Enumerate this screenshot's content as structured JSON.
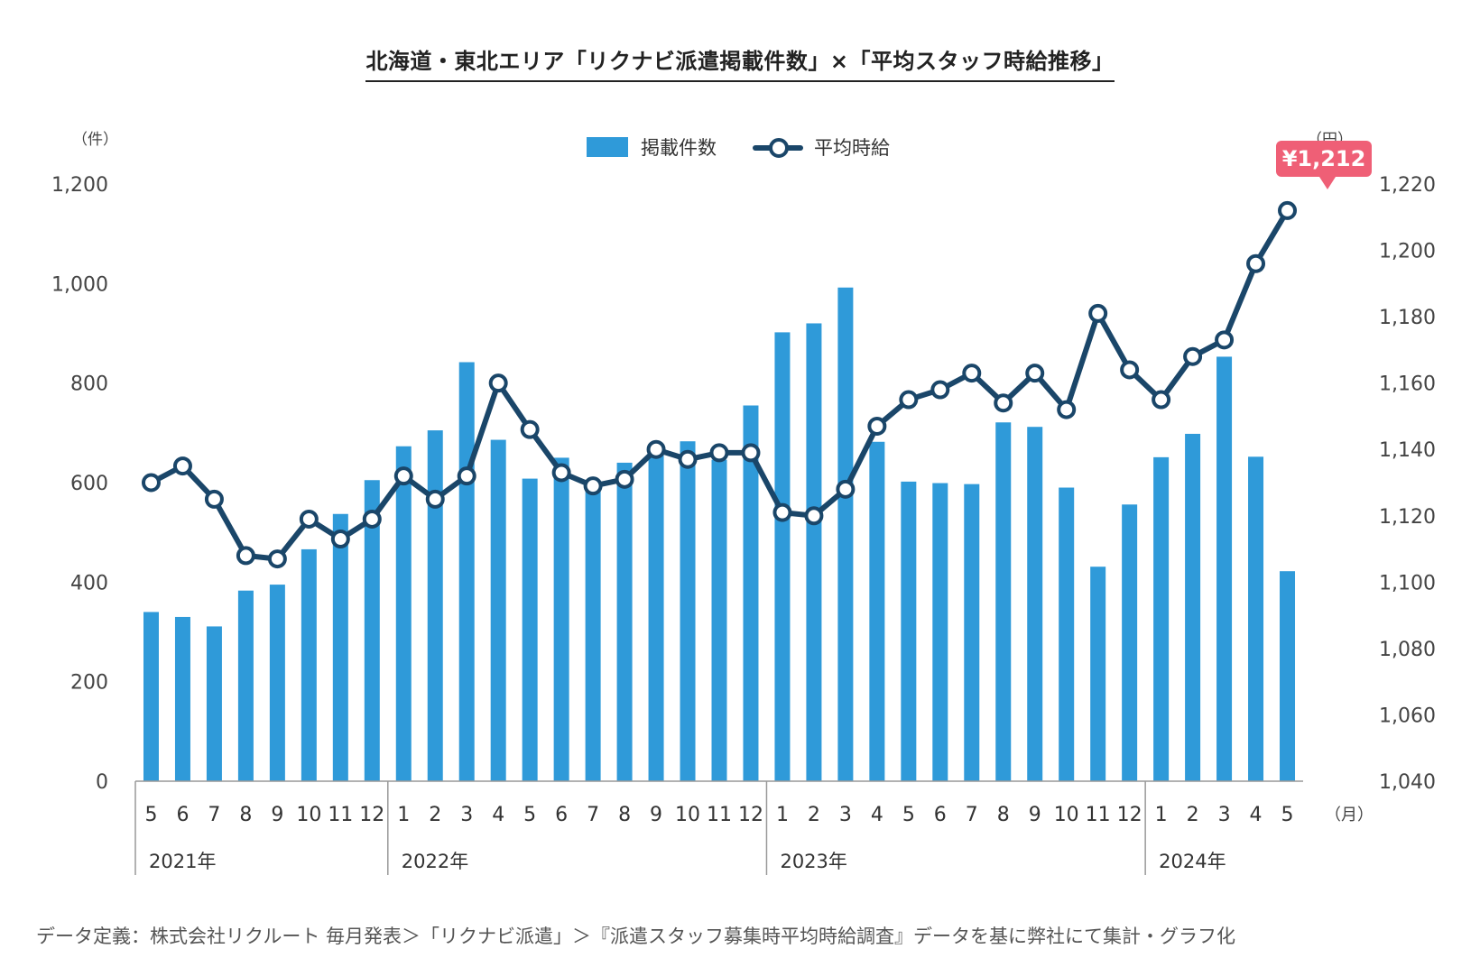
{
  "title": "北海道・東北エリア「リクナビ派遣掲載件数」×「平均スタッフ時給推移」",
  "footnote": "データ定義：株式会社リクルート 毎月発表＞「リクナビ派遣」＞『派遣スタッフ募集時平均時給調査』データを基に弊社にて集計・グラフ化",
  "callout": "¥1,212",
  "colors": {
    "bar": "#2f9ad9",
    "line": "#1a4669",
    "callout": "#ef5f76",
    "axis": "#999999"
  },
  "chart_data": {
    "type": "bar",
    "categories": [
      "5",
      "6",
      "7",
      "8",
      "9",
      "10",
      "11",
      "12",
      "1",
      "2",
      "3",
      "4",
      "5",
      "6",
      "7",
      "8",
      "9",
      "10",
      "11",
      "12",
      "1",
      "2",
      "3",
      "4",
      "5",
      "6",
      "7",
      "8",
      "9",
      "10",
      "11",
      "12",
      "1",
      "2",
      "3",
      "4",
      "5"
    ],
    "x_unit": "（月）",
    "year_groups": [
      {
        "label": "2021年",
        "start": 0,
        "count": 8
      },
      {
        "label": "2022年",
        "start": 8,
        "count": 12
      },
      {
        "label": "2023年",
        "start": 20,
        "count": 12
      },
      {
        "label": "2024年",
        "start": 32,
        "count": 5
      }
    ],
    "y_left": {
      "unit": "（件）",
      "min": 0,
      "max": 1200,
      "ticks": [
        "0",
        "200",
        "400",
        "600",
        "800",
        "1,000",
        "1,200"
      ]
    },
    "y_right": {
      "unit": "（円）",
      "min": 1040,
      "max": 1220,
      "ticks": [
        "1,040",
        "1,060",
        "1,080",
        "1,100",
        "1,120",
        "1,140",
        "1,160",
        "1,180",
        "1,200",
        "1,220"
      ]
    },
    "series": [
      {
        "name": "掲載件数",
        "type": "bar",
        "axis": "left",
        "values": [
          340,
          330,
          311,
          383,
          395,
          466,
          537,
          605,
          673,
          705,
          842,
          686,
          608,
          650,
          594,
          640,
          657,
          683,
          646,
          755,
          902,
          920,
          992,
          682,
          602,
          599,
          597,
          721,
          712,
          590,
          431,
          556,
          651,
          698,
          853,
          652,
          422
        ]
      },
      {
        "name": "平均時給",
        "type": "line",
        "axis": "right",
        "values": [
          1130,
          1135,
          1125,
          1108,
          1107,
          1119,
          1113,
          1119,
          1132,
          1125,
          1132,
          1160,
          1146,
          1133,
          1129,
          1131,
          1140,
          1137,
          1139,
          1139,
          1121,
          1120,
          1128,
          1147,
          1155,
          1158,
          1163,
          1154,
          1163,
          1152,
          1181,
          1164,
          1155,
          1168,
          1173,
          1196,
          1212
        ]
      }
    ],
    "grid": false,
    "legend_position": "top-center"
  }
}
